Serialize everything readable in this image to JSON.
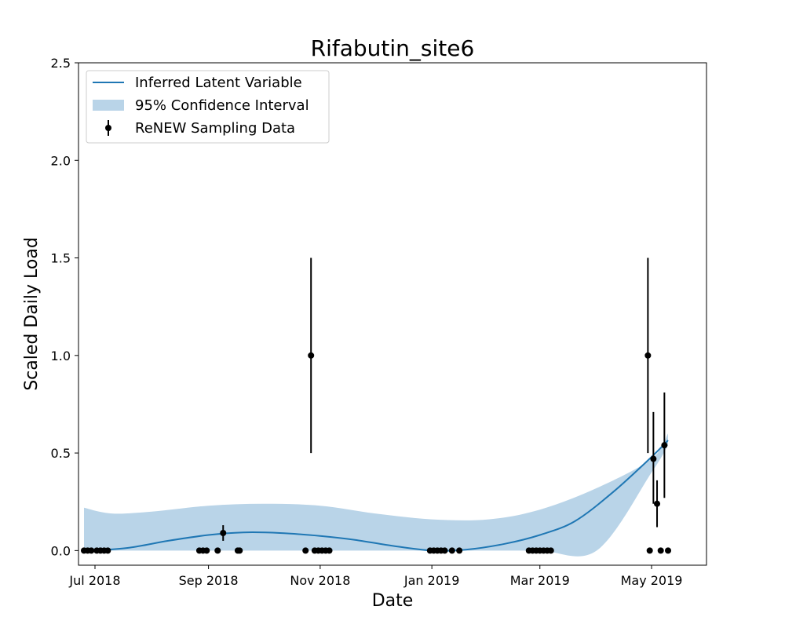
{
  "chart_data": {
    "type": "line",
    "title": "Rifabutin_site6",
    "xlabel": "Date",
    "ylabel": "Scaled Daily Load",
    "xlim": [
      "2018-06-22",
      "2019-05-31"
    ],
    "ylim": [
      -0.075,
      2.5
    ],
    "x_ticks": [
      {
        "date": "2018-07-01",
        "label": "Jul 2018"
      },
      {
        "date": "2018-09-01",
        "label": "Sep 2018"
      },
      {
        "date": "2018-11-01",
        "label": "Nov 2018"
      },
      {
        "date": "2019-01-01",
        "label": "Jan 2019"
      },
      {
        "date": "2019-03-01",
        "label": "Mar 2019"
      },
      {
        "date": "2019-05-01",
        "label": "May 2019"
      }
    ],
    "y_ticks": [
      {
        "value": 0.0,
        "label": "0.0"
      },
      {
        "value": 0.5,
        "label": "0.5"
      },
      {
        "value": 1.0,
        "label": "1.0"
      },
      {
        "value": 1.5,
        "label": "1.5"
      },
      {
        "value": 2.0,
        "label": "2.0"
      },
      {
        "value": 2.5,
        "label": "2.5"
      }
    ],
    "legend": {
      "placement": "top-left",
      "entries": [
        "Inferred Latent Variable",
        "95% Confidence Interval",
        "ReNEW Sampling Data"
      ]
    },
    "colors": {
      "line": "#1f77b4",
      "band": "#b9d4e8",
      "points": "#000000"
    },
    "series": [
      {
        "name": "Inferred Latent Variable",
        "kind": "line",
        "x": [
          "2018-07-01",
          "2018-07-20",
          "2018-08-10",
          "2018-09-01",
          "2018-09-20",
          "2018-10-10",
          "2018-11-01",
          "2018-11-20",
          "2018-12-10",
          "2019-01-01",
          "2019-01-20",
          "2019-02-10",
          "2019-03-01",
          "2019-03-20",
          "2019-04-10",
          "2019-05-01",
          "2019-05-10"
        ],
        "y": [
          0.0,
          0.015,
          0.05,
          0.08,
          0.093,
          0.09,
          0.075,
          0.055,
          0.025,
          0.0,
          0.005,
          0.035,
          0.08,
          0.15,
          0.3,
          0.48,
          0.565
        ]
      },
      {
        "name": "95% Confidence Interval",
        "kind": "band",
        "x": [
          "2018-06-25",
          "2018-07-10",
          "2018-08-01",
          "2018-09-01",
          "2018-10-01",
          "2018-11-01",
          "2018-12-01",
          "2019-01-01",
          "2019-02-01",
          "2019-03-01",
          "2019-04-01",
          "2019-05-01",
          "2019-05-10"
        ],
        "lower": [
          0.0,
          0.0,
          0.0,
          0.0,
          0.0,
          0.0,
          0.0,
          0.0,
          0.0,
          0.0,
          0.0,
          0.4,
          0.54
        ],
        "upper": [
          0.22,
          0.19,
          0.2,
          0.23,
          0.24,
          0.23,
          0.19,
          0.16,
          0.16,
          0.21,
          0.32,
          0.47,
          0.6
        ]
      },
      {
        "name": "ReNEW Sampling Data",
        "kind": "errorbar",
        "points": [
          {
            "x": "2018-06-25",
            "y": 0.0
          },
          {
            "x": "2018-06-27",
            "y": 0.0
          },
          {
            "x": "2018-06-29",
            "y": 0.0
          },
          {
            "x": "2018-07-02",
            "y": 0.0
          },
          {
            "x": "2018-07-04",
            "y": 0.0
          },
          {
            "x": "2018-07-06",
            "y": 0.0
          },
          {
            "x": "2018-07-08",
            "y": 0.0
          },
          {
            "x": "2018-08-27",
            "y": 0.0
          },
          {
            "x": "2018-08-29",
            "y": 0.0
          },
          {
            "x": "2018-08-31",
            "y": 0.0
          },
          {
            "x": "2018-09-06",
            "y": 0.0
          },
          {
            "x": "2018-09-09",
            "y": 0.09,
            "ylow": 0.05,
            "yhigh": 0.13
          },
          {
            "x": "2018-09-17",
            "y": 0.0
          },
          {
            "x": "2018-09-18",
            "y": 0.0
          },
          {
            "x": "2018-10-24",
            "y": 0.0
          },
          {
            "x": "2018-10-27",
            "y": 1.0,
            "ylow": 0.5,
            "yhigh": 1.5
          },
          {
            "x": "2018-10-29",
            "y": 0.0
          },
          {
            "x": "2018-10-31",
            "y": 0.0
          },
          {
            "x": "2018-11-02",
            "y": 0.0
          },
          {
            "x": "2018-11-04",
            "y": 0.0
          },
          {
            "x": "2018-11-06",
            "y": 0.0
          },
          {
            "x": "2018-12-31",
            "y": 0.0
          },
          {
            "x": "2019-01-02",
            "y": 0.0
          },
          {
            "x": "2019-01-04",
            "y": 0.0
          },
          {
            "x": "2019-01-06",
            "y": 0.0
          },
          {
            "x": "2019-01-08",
            "y": 0.0
          },
          {
            "x": "2019-01-12",
            "y": 0.0
          },
          {
            "x": "2019-01-16",
            "y": 0.0
          },
          {
            "x": "2019-02-23",
            "y": 0.0
          },
          {
            "x": "2019-02-25",
            "y": 0.0
          },
          {
            "x": "2019-02-27",
            "y": 0.0
          },
          {
            "x": "2019-03-01",
            "y": 0.0
          },
          {
            "x": "2019-03-03",
            "y": 0.0
          },
          {
            "x": "2019-03-05",
            "y": 0.0
          },
          {
            "x": "2019-03-07",
            "y": 0.0
          },
          {
            "x": "2019-04-29",
            "y": 1.0,
            "ylow": 0.5,
            "yhigh": 1.5
          },
          {
            "x": "2019-04-30",
            "y": 0.0
          },
          {
            "x": "2019-05-02",
            "y": 0.47,
            "ylow": 0.24,
            "yhigh": 0.71
          },
          {
            "x": "2019-05-04",
            "y": 0.24,
            "ylow": 0.12,
            "yhigh": 0.36
          },
          {
            "x": "2019-05-06",
            "y": 0.0
          },
          {
            "x": "2019-05-08",
            "y": 0.54,
            "ylow": 0.27,
            "yhigh": 0.81
          },
          {
            "x": "2019-05-10",
            "y": 0.0
          }
        ]
      }
    ]
  }
}
